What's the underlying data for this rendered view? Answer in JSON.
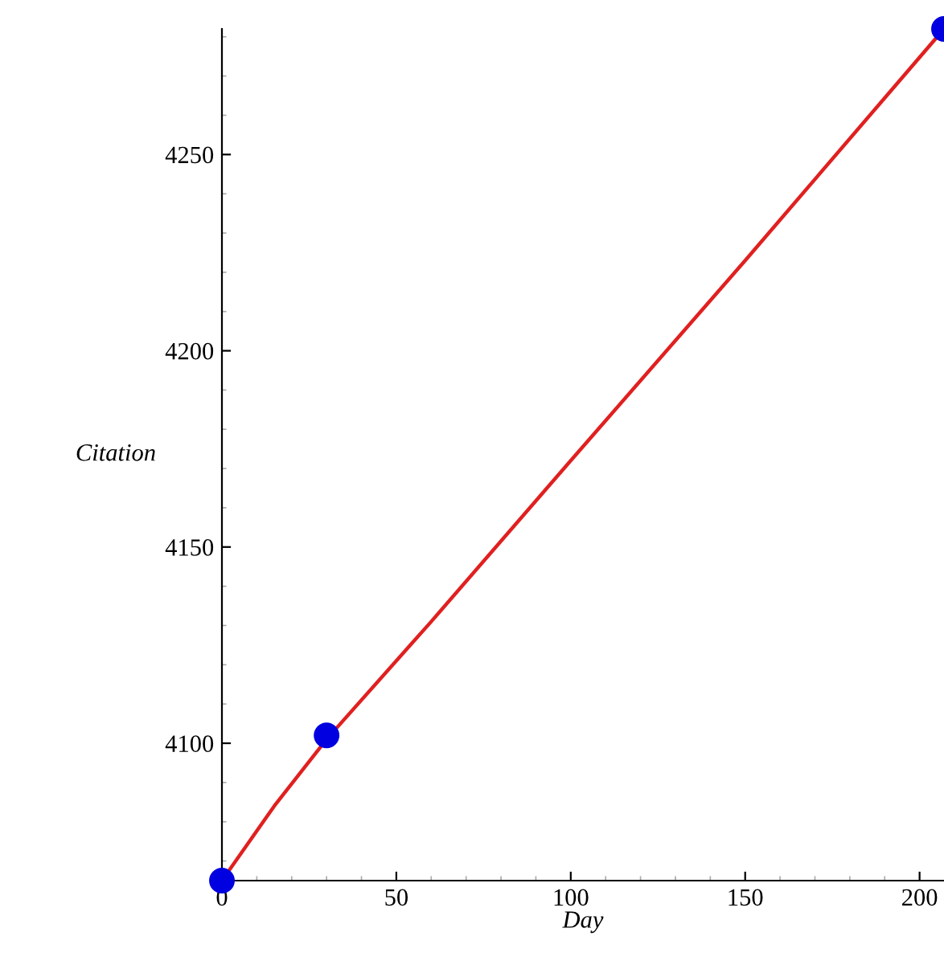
{
  "chart_data": {
    "type": "scatter",
    "xlabel": "Day",
    "ylabel": "Citation",
    "xlim": [
      0,
      207
    ],
    "ylim": [
      4065,
      4282
    ],
    "xticks": [
      0,
      50,
      100,
      150,
      200
    ],
    "yticks": [
      4100,
      4150,
      4200,
      4250
    ],
    "grid": false,
    "legend": false,
    "series": [
      {
        "type": "line",
        "color": "#e02020",
        "marker": "none",
        "line_style": "solid",
        "x": [
          0,
          15,
          30,
          60,
          100,
          150,
          207
        ],
        "values": [
          4065,
          4084,
          4101,
          4131,
          4172,
          4223,
          4282
        ]
      },
      {
        "color": "#0000e0",
        "marker": "circle",
        "x": [
          0,
          30,
          207
        ],
        "values": [
          4065,
          4102,
          4282
        ]
      }
    ]
  }
}
